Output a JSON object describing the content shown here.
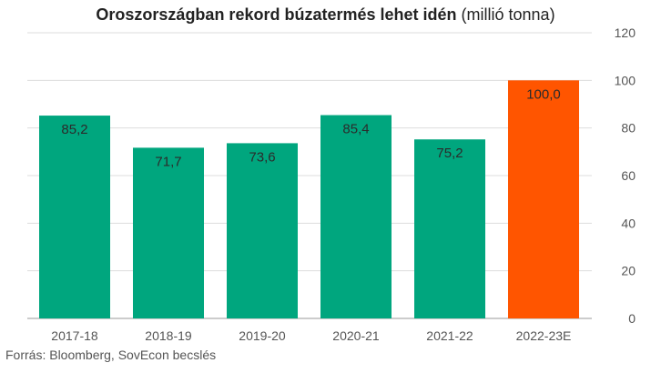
{
  "chart_data": {
    "type": "bar",
    "title": "Oroszországban rekord búzatermés lehet idén",
    "title_unit": "(millió tonna)",
    "categories": [
      "2017-18",
      "2018-19",
      "2019-20",
      "2020-21",
      "2021-22",
      "2022-23E"
    ],
    "values": [
      85.2,
      71.7,
      73.6,
      85.4,
      75.2,
      100.0
    ],
    "data_labels": [
      "85,2",
      "71,7",
      "73,6",
      "85,4",
      "75,2",
      "100,0"
    ],
    "ylim": [
      0,
      120
    ],
    "yticks": [
      0,
      20,
      40,
      60,
      80,
      100,
      120
    ],
    "y_axis_side": "right",
    "grid": true,
    "colors": {
      "default_bar": "#00A67E",
      "highlight_bar": "#FF5500",
      "grid": "#dddddd"
    },
    "highlight_index": 5
  },
  "source": "Forrás: Bloomberg, SovEcon becslés"
}
